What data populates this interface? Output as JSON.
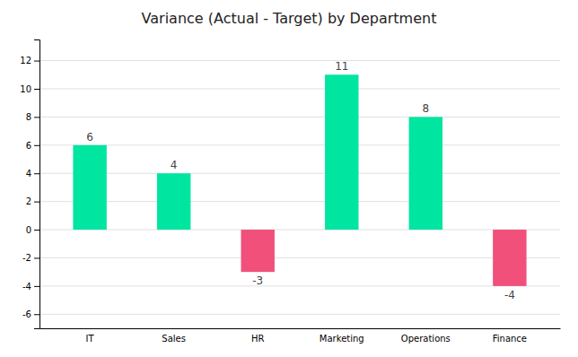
{
  "chart_data": {
    "type": "bar",
    "title": "Variance (Actual - Target) by Department",
    "categories": [
      "IT",
      "Sales",
      "HR",
      "Marketing",
      "Operations",
      "Finance"
    ],
    "values": [
      6,
      4,
      -3,
      11,
      8,
      -4
    ],
    "colors": [
      "#00E5A0",
      "#00E5A0",
      "#F0507A",
      "#00E5A0",
      "#00E5A0",
      "#F0507A"
    ],
    "ylim": [
      -7,
      13.5
    ],
    "yticks": [
      -6,
      -4,
      -2,
      0,
      2,
      4,
      6,
      8,
      10,
      12
    ],
    "grid": true,
    "data_labels": true
  }
}
